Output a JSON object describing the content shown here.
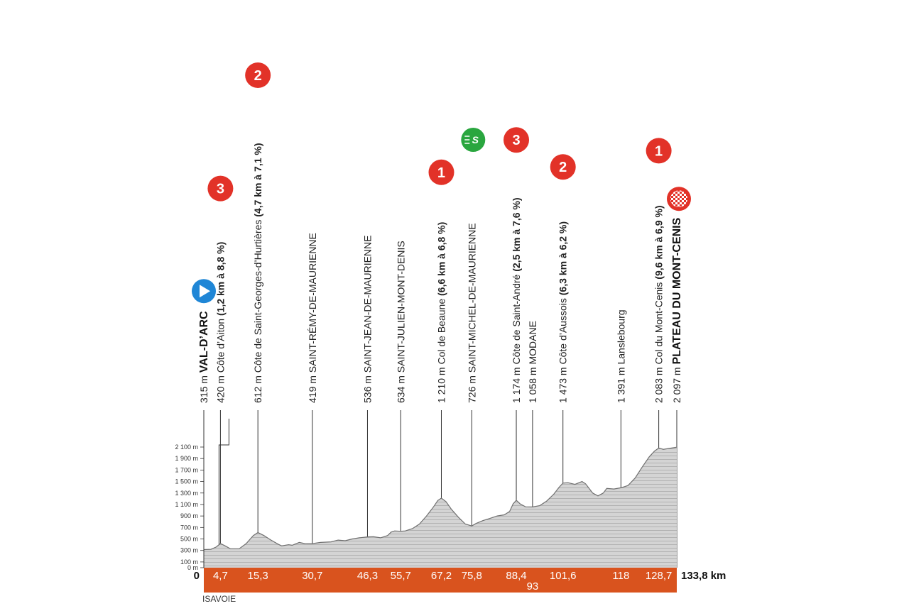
{
  "colors": {
    "km_bar": "#d9531e",
    "profile_fill": "#d4d4d4",
    "profile_stroke": "#707070",
    "hatch": "#9a9a9a",
    "climb_badge": "#e23228",
    "start_badge": "#1f86d6",
    "sprint_badge": "#2aa63f",
    "finish_flag_bg": "#e23228",
    "guide_line": "#333333"
  },
  "region_label": "ISAVOIE",
  "chart_data": {
    "type": "area",
    "title": "",
    "xlabel": "",
    "ylabel": "",
    "xlim": [
      0,
      133.8
    ],
    "ylim": [
      0,
      2100
    ],
    "x_unit": "km",
    "y_ticks": [
      {
        "value": 0,
        "label": "0 m"
      },
      {
        "value": 100,
        "label": "100 m"
      },
      {
        "value": 300,
        "label": "300 m"
      },
      {
        "value": 500,
        "label": "500 m"
      },
      {
        "value": 700,
        "label": "700 m"
      },
      {
        "value": 900,
        "label": "900 m"
      },
      {
        "value": 1100,
        "label": "1 100 m"
      },
      {
        "value": 1300,
        "label": "1 300 m"
      },
      {
        "value": 1500,
        "label": "1 500 m"
      },
      {
        "value": 1700,
        "label": "1 700 m"
      },
      {
        "value": 1900,
        "label": "1 900 m"
      },
      {
        "value": 2100,
        "label": "2 100 m"
      }
    ],
    "x_ticks": [
      {
        "km": 0,
        "label": "0",
        "edge": true
      },
      {
        "km": 4.7,
        "label": "4,7"
      },
      {
        "km": 15.3,
        "label": "15,3"
      },
      {
        "km": 30.7,
        "label": "30,7"
      },
      {
        "km": 46.3,
        "label": "46,3"
      },
      {
        "km": 55.7,
        "label": "55,7"
      },
      {
        "km": 67.2,
        "label": "67,2"
      },
      {
        "km": 75.8,
        "label": "75,8"
      },
      {
        "km": 88.4,
        "label": "88,4"
      },
      {
        "km": 93,
        "label": "93",
        "below": true
      },
      {
        "km": 101.6,
        "label": "101,6"
      },
      {
        "km": 118,
        "label": "118"
      },
      {
        "km": 128.7,
        "label": "128,7"
      },
      {
        "km": 133.8,
        "label": "133,8 km",
        "edge": true
      }
    ],
    "profile": [
      [
        0,
        315
      ],
      [
        2,
        320
      ],
      [
        3.5,
        360
      ],
      [
        4.7,
        420
      ],
      [
        6,
        380
      ],
      [
        7.5,
        330
      ],
      [
        10,
        330
      ],
      [
        12,
        420
      ],
      [
        14,
        560
      ],
      [
        15.3,
        612
      ],
      [
        17,
        560
      ],
      [
        19,
        480
      ],
      [
        21,
        410
      ],
      [
        22,
        380
      ],
      [
        24,
        400
      ],
      [
        25,
        390
      ],
      [
        27,
        440
      ],
      [
        28.5,
        420
      ],
      [
        30.7,
        419
      ],
      [
        33,
        440
      ],
      [
        36,
        450
      ],
      [
        38,
        480
      ],
      [
        40,
        470
      ],
      [
        42,
        500
      ],
      [
        44,
        520
      ],
      [
        46.3,
        536
      ],
      [
        48,
        540
      ],
      [
        50,
        520
      ],
      [
        52,
        560
      ],
      [
        53,
        620
      ],
      [
        54,
        640
      ],
      [
        55.7,
        634
      ],
      [
        57,
        640
      ],
      [
        59,
        680
      ],
      [
        61,
        760
      ],
      [
        63,
        900
      ],
      [
        65,
        1060
      ],
      [
        66.2,
        1170
      ],
      [
        67.2,
        1210
      ],
      [
        68.5,
        1150
      ],
      [
        70,
        1020
      ],
      [
        72,
        880
      ],
      [
        74,
        760
      ],
      [
        75.8,
        726
      ],
      [
        77,
        770
      ],
      [
        79,
        820
      ],
      [
        81,
        860
      ],
      [
        83,
        900
      ],
      [
        85,
        920
      ],
      [
        86.5,
        980
      ],
      [
        87.5,
        1110
      ],
      [
        88.4,
        1174
      ],
      [
        89.5,
        1110
      ],
      [
        91,
        1060
      ],
      [
        93,
        1058
      ],
      [
        95,
        1080
      ],
      [
        97,
        1160
      ],
      [
        99,
        1280
      ],
      [
        100.5,
        1400
      ],
      [
        101.6,
        1473
      ],
      [
        103,
        1480
      ],
      [
        105,
        1450
      ],
      [
        107,
        1500
      ],
      [
        108,
        1460
      ],
      [
        110,
        1300
      ],
      [
        111.5,
        1250
      ],
      [
        113,
        1300
      ],
      [
        114,
        1380
      ],
      [
        116,
        1370
      ],
      [
        118,
        1391
      ],
      [
        120,
        1430
      ],
      [
        122,
        1560
      ],
      [
        124,
        1750
      ],
      [
        126,
        1930
      ],
      [
        127.5,
        2030
      ],
      [
        128.7,
        2083
      ],
      [
        130,
        2060
      ],
      [
        132,
        2080
      ],
      [
        133.8,
        2097
      ]
    ],
    "waypoints": [
      {
        "km": 0,
        "altitude": "315 m",
        "name": "VAL-D’ARC",
        "detail": "",
        "bold": true,
        "big": true,
        "badge": "start"
      },
      {
        "km": 4.7,
        "altitude": "420 m",
        "name": "Côte d’Aiton",
        "detail": "(1,2 km à 8,8 %)",
        "badge": "climb",
        "category": "3"
      },
      {
        "km": 15.3,
        "altitude": "612 m",
        "name": "Côte de Saint-Georges-d’Hurtières",
        "detail": "(4,7 km à 7,1 %)",
        "badge": "climb",
        "category": "2"
      },
      {
        "km": 30.7,
        "altitude": "419 m",
        "name": "SAINT-RÉMY-DE-MAURIENNE",
        "detail": ""
      },
      {
        "km": 46.3,
        "altitude": "536 m",
        "name": "SAINT-JEAN-DE-MAURIENNE",
        "detail": ""
      },
      {
        "km": 55.7,
        "altitude": "634 m",
        "name": "SAINT-JULIEN-MONT-DENIS",
        "detail": ""
      },
      {
        "km": 67.2,
        "altitude": "1 210 m",
        "name": "Col de Beaune",
        "detail": "(6,6 km à 6,8 %)",
        "badge": "climb",
        "category": "1"
      },
      {
        "km": 75.8,
        "altitude": "726 m",
        "name": "SAINT-MICHEL-DE-MAURIENNE",
        "detail": "",
        "badge": "sprint",
        "sprint_label": "S"
      },
      {
        "km": 88.4,
        "altitude": "1 174 m",
        "name": "Côte de Saint-André",
        "detail": "(2,5 km à 7,6 %)",
        "badge": "climb",
        "category": "3"
      },
      {
        "km": 93,
        "altitude": "1 058 m",
        "name": "MODANE",
        "detail": ""
      },
      {
        "km": 101.6,
        "altitude": "1 473 m",
        "name": "Côte d’Aussois",
        "detail": "(6,3 km à 6,2 %)",
        "badge": "climb",
        "category": "2"
      },
      {
        "km": 118,
        "altitude": "1 391 m",
        "name": "Lanslebourg",
        "detail": ""
      },
      {
        "km": 128.7,
        "altitude": "2 083 m",
        "name": "Col du Mont-Cenis",
        "detail": "(9,6 km à 6,9 %)",
        "badge": "climb",
        "category": "1"
      },
      {
        "km": 133.8,
        "altitude": "2 097 m",
        "name": "PLATEAU DU MONT-CENIS",
        "detail": "",
        "bold": true,
        "big": true,
        "badge": "finish"
      }
    ]
  }
}
